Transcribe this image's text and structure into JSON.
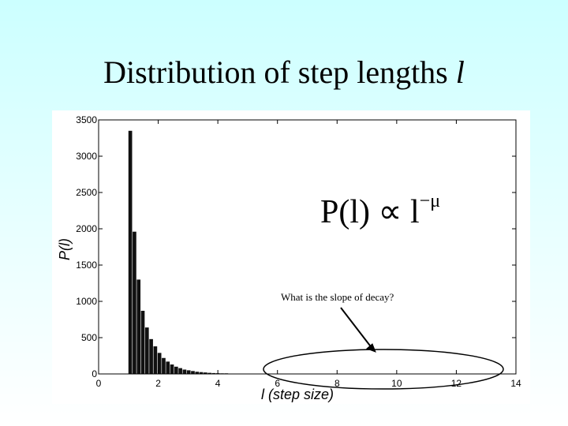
{
  "slide": {
    "title_text": "Distribution of step lengths ",
    "title_var": "l"
  },
  "annotation": {
    "formula_main": "P(l) ∝ l",
    "formula_exponent": "−μ",
    "question": "What is the slope of decay?"
  },
  "chart_data": {
    "type": "bar",
    "xlabel": "l (step size)",
    "ylabel": "P(l)",
    "xlim": [
      0,
      14
    ],
    "ylim": [
      0,
      3500
    ],
    "xticks": [
      0,
      2,
      4,
      6,
      8,
      10,
      12,
      14
    ],
    "yticks": [
      0,
      500,
      1000,
      1500,
      2000,
      2500,
      3000,
      3500
    ],
    "grid": false,
    "bin_width": 0.14,
    "x": [
      1.07,
      1.21,
      1.35,
      1.49,
      1.63,
      1.77,
      1.91,
      2.05,
      2.19,
      2.33,
      2.47,
      2.61,
      2.75,
      2.89,
      3.03,
      3.17,
      3.31,
      3.45,
      3.59,
      3.73,
      3.87,
      4.01,
      4.15,
      4.29
    ],
    "values": [
      3350,
      1960,
      1300,
      870,
      640,
      480,
      380,
      290,
      220,
      170,
      130,
      100,
      80,
      60,
      50,
      40,
      30,
      25,
      20,
      15,
      12,
      10,
      8,
      8
    ]
  },
  "colors": {
    "bars": "#111111",
    "ellipse": "#000000",
    "background_top": "#ccffff"
  }
}
